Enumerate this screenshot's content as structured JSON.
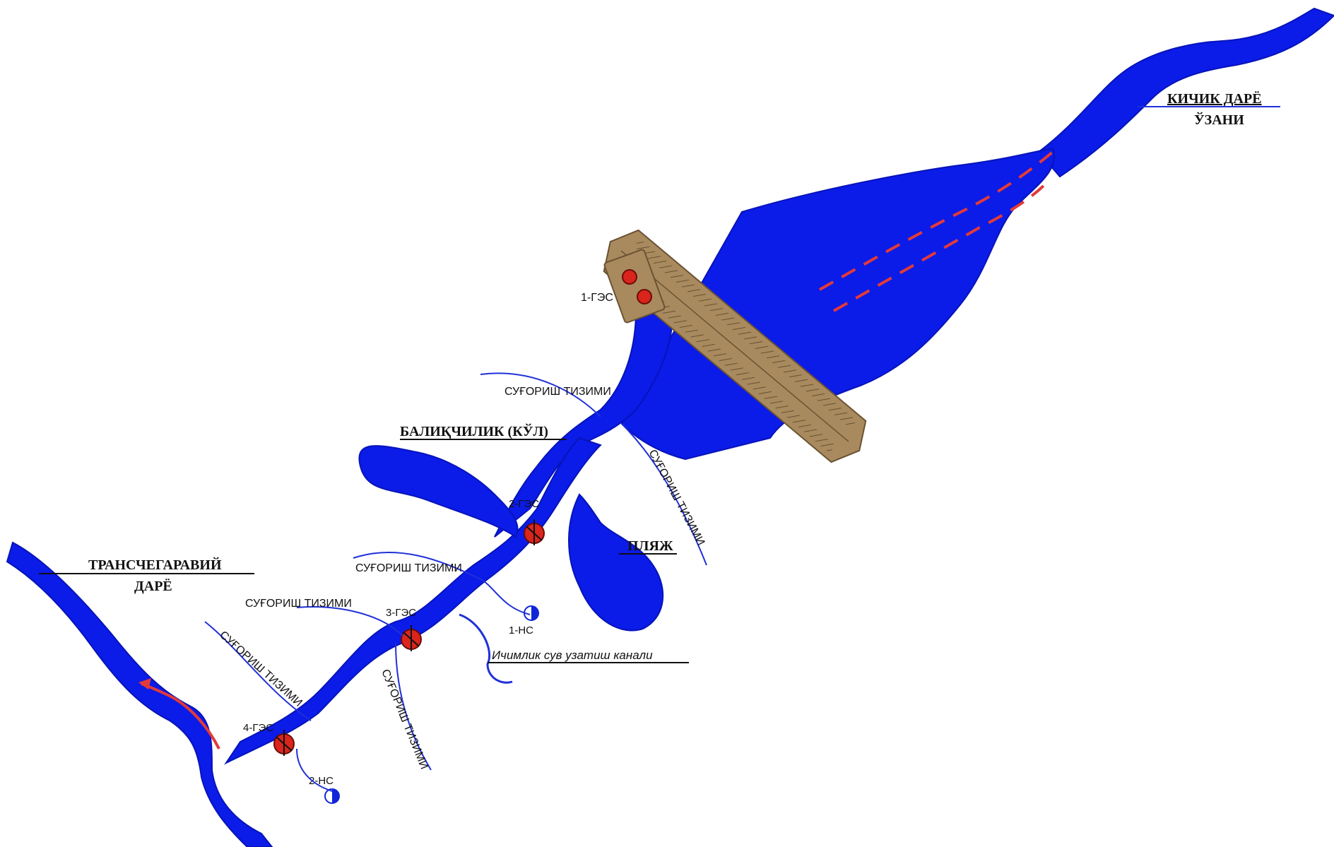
{
  "colors": {
    "water": "#0b1be8",
    "water_dark": "#0714b8",
    "dam": "#a88a5e",
    "dam_dark": "#7a5e38",
    "station_red": "#d9251c",
    "flow_red": "#e23a3a",
    "canal_line": "#2030d8"
  },
  "labels": {
    "small_river_basin_line1": "КИЧИК ДАРЁ",
    "small_river_basin_line2": "ЎЗАНИ",
    "transboundary_river_line1": "ТРАНСЧЕГАРАВИЙ",
    "transboundary_river_line2": "ДАРЁ",
    "fishery_lake": "БАЛИҚЧИЛИК (КЎЛ)",
    "beach": "ПЛЯЖ",
    "drinking_canal": "Ичимлик сув узатиш канали"
  },
  "stations": {
    "hpp1": "1-ГЭС",
    "hpp2": "2-ГЭС",
    "hpp3": "3-ГЭС",
    "hpp4": "4-ГЭС",
    "ps1": "1-НС",
    "ps2": "2-НС"
  },
  "irrigation": {
    "label": "СУҒОРИШ ТИЗИМИ",
    "label_alt": "СУҒОРИШ ТИЗИМИ"
  },
  "icons": {
    "pump_station": "half-filled-circle-icon",
    "hydro_station": "red-circle-turbine-icon"
  }
}
